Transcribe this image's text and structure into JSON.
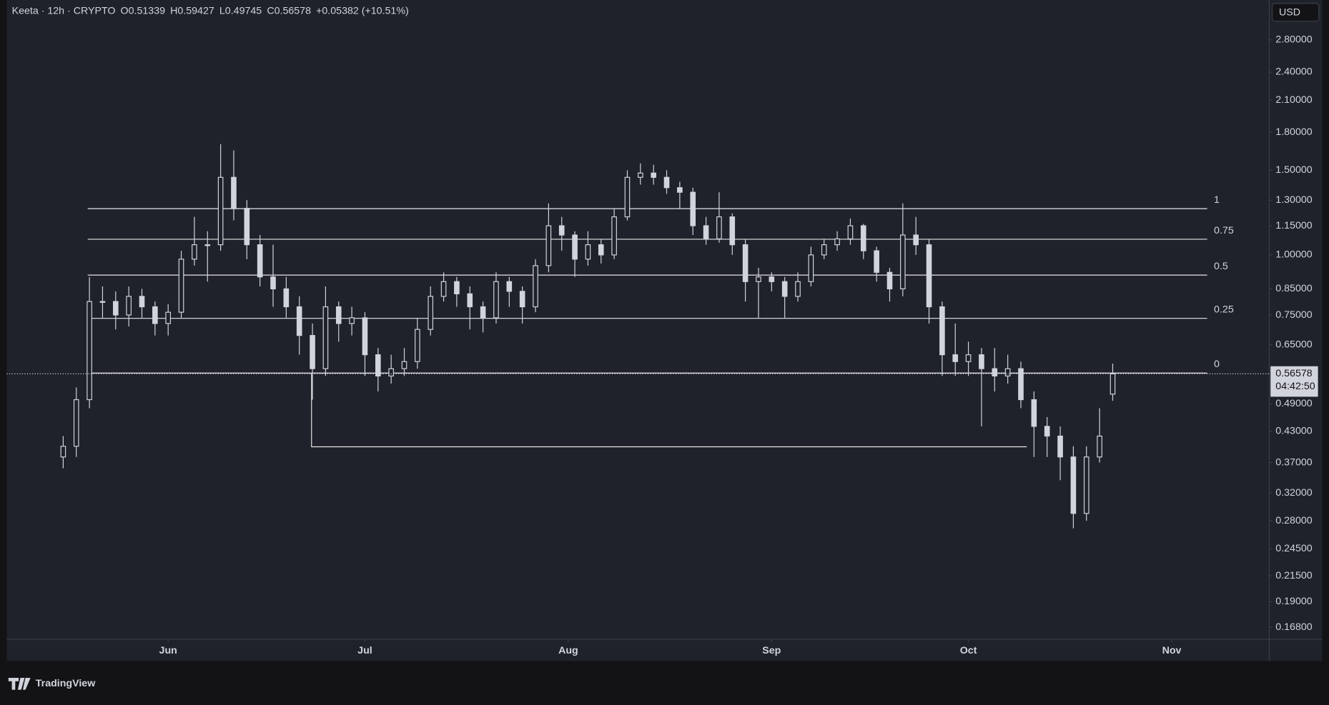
{
  "header": {
    "symbol": "Keeta · 12h · CRYPTO",
    "ohlc_labels": [
      "O",
      "H",
      "L",
      "C"
    ],
    "change": "+0.05382 (+10.51%)",
    "currency": "USD",
    "countdown": "04:42:50",
    "brand": "TradingView"
  },
  "chart_data": {
    "type": "candlestick",
    "log_scale": true,
    "color": "#d1d4dc",
    "xlim": [
      -4.3,
      91.9
    ],
    "ylim": [
      0.159,
      3.39
    ],
    "xticks": [
      {
        "value": 8,
        "label": "Jun"
      },
      {
        "value": 23,
        "label": "Jul"
      },
      {
        "value": 38.5,
        "label": "Aug"
      },
      {
        "value": 54,
        "label": "Sep"
      },
      {
        "value": 69,
        "label": "Oct"
      },
      {
        "value": 84.5,
        "label": "Nov"
      }
    ],
    "yticks": [
      {
        "value": 2.8,
        "label": "2.80000"
      },
      {
        "value": 2.4,
        "label": "2.40000"
      },
      {
        "value": 2.1,
        "label": "2.10000"
      },
      {
        "value": 1.8,
        "label": "1.80000"
      },
      {
        "value": 1.5,
        "label": "1.50000"
      },
      {
        "value": 1.3,
        "label": "1.30000"
      },
      {
        "value": 1.15,
        "label": "1.15000"
      },
      {
        "value": 1.0,
        "label": "1.00000"
      },
      {
        "value": 0.85,
        "label": "0.85000"
      },
      {
        "value": 0.75,
        "label": "0.75000"
      },
      {
        "value": 0.65,
        "label": "0.65000"
      },
      {
        "value": 0.49,
        "label": "0.49000"
      },
      {
        "value": 0.43,
        "label": "0.43000"
      },
      {
        "value": 0.37,
        "label": "0.37000"
      },
      {
        "value": 0.32,
        "label": "0.32000"
      },
      {
        "value": 0.28,
        "label": "0.28000"
      },
      {
        "value": 0.245,
        "label": "0.24500"
      },
      {
        "value": 0.215,
        "label": "0.21500"
      },
      {
        "value": 0.19,
        "label": "0.19000"
      },
      {
        "value": 0.168,
        "label": "0.16800"
      }
    ],
    "open": [
      0.38,
      0.4,
      0.5,
      0.8,
      0.8,
      0.75,
      0.82,
      0.78,
      0.72,
      0.76,
      0.98,
      1.05,
      1.05,
      1.45,
      1.25,
      1.05,
      0.9,
      0.85,
      0.78,
      0.68,
      0.58,
      0.78,
      0.72,
      0.74,
      0.62,
      0.56,
      0.58,
      0.6,
      0.7,
      0.82,
      0.88,
      0.83,
      0.78,
      0.74,
      0.88,
      0.84,
      0.78,
      0.95,
      1.15,
      1.1,
      0.98,
      1.05,
      1.0,
      1.2,
      1.45,
      1.48,
      1.45,
      1.38,
      1.35,
      1.15,
      1.08,
      1.2,
      1.05,
      0.88,
      0.9,
      0.88,
      0.82,
      0.88,
      1.0,
      1.05,
      1.08,
      1.15,
      1.02,
      0.92,
      0.85,
      1.1,
      1.05,
      0.78,
      0.62,
      0.6,
      0.62,
      0.58,
      0.56,
      0.58,
      0.5,
      0.44,
      0.42,
      0.38,
      0.29,
      0.38,
      0.51339
    ],
    "high": [
      0.42,
      0.53,
      0.9,
      0.86,
      0.84,
      0.86,
      0.85,
      0.8,
      0.79,
      1.02,
      1.2,
      1.12,
      1.7,
      1.65,
      1.3,
      1.1,
      1.05,
      0.9,
      0.82,
      0.72,
      0.86,
      0.8,
      0.78,
      0.76,
      0.64,
      0.62,
      0.64,
      0.74,
      0.86,
      0.92,
      0.9,
      0.86,
      0.8,
      0.92,
      0.9,
      0.86,
      0.98,
      1.28,
      1.2,
      1.12,
      1.12,
      1.08,
      1.25,
      1.5,
      1.55,
      1.54,
      1.5,
      1.42,
      1.38,
      1.2,
      1.35,
      1.22,
      1.08,
      0.94,
      0.92,
      0.9,
      0.92,
      1.04,
      1.08,
      1.12,
      1.19,
      1.16,
      1.04,
      0.94,
      1.28,
      1.2,
      1.08,
      0.8,
      0.72,
      0.66,
      0.64,
      0.64,
      0.62,
      0.6,
      0.52,
      0.46,
      0.44,
      0.4,
      0.4,
      0.48,
      0.59427
    ],
    "low": [
      0.36,
      0.38,
      0.48,
      0.74,
      0.7,
      0.71,
      0.74,
      0.68,
      0.68,
      0.74,
      0.95,
      0.88,
      1.02,
      1.18,
      0.98,
      0.86,
      0.78,
      0.74,
      0.62,
      0.5,
      0.56,
      0.66,
      0.68,
      0.56,
      0.52,
      0.54,
      0.56,
      0.58,
      0.68,
      0.8,
      0.78,
      0.7,
      0.69,
      0.72,
      0.78,
      0.72,
      0.76,
      0.92,
      1.02,
      0.9,
      0.95,
      0.96,
      0.98,
      1.18,
      1.4,
      1.4,
      1.34,
      1.25,
      1.1,
      1.05,
      1.06,
      1.0,
      0.8,
      0.74,
      0.84,
      0.74,
      0.8,
      0.86,
      0.98,
      1.02,
      1.05,
      0.98,
      0.88,
      0.8,
      0.82,
      1.0,
      0.72,
      0.56,
      0.56,
      0.56,
      0.44,
      0.52,
      0.54,
      0.48,
      0.38,
      0.38,
      0.34,
      0.27,
      0.28,
      0.37,
      0.49745
    ],
    "close": [
      0.4,
      0.5,
      0.8,
      0.8,
      0.75,
      0.82,
      0.78,
      0.72,
      0.76,
      0.98,
      1.05,
      1.05,
      1.45,
      1.25,
      1.05,
      0.9,
      0.85,
      0.78,
      0.68,
      0.58,
      0.78,
      0.72,
      0.74,
      0.62,
      0.56,
      0.58,
      0.6,
      0.7,
      0.82,
      0.88,
      0.83,
      0.78,
      0.74,
      0.88,
      0.84,
      0.78,
      0.95,
      1.15,
      1.1,
      0.98,
      1.05,
      1.0,
      1.2,
      1.45,
      1.48,
      1.45,
      1.38,
      1.35,
      1.15,
      1.08,
      1.2,
      1.05,
      0.88,
      0.9,
      0.88,
      0.82,
      0.88,
      1.0,
      1.05,
      1.08,
      1.15,
      1.02,
      0.92,
      0.85,
      1.1,
      1.05,
      0.78,
      0.62,
      0.6,
      0.62,
      0.58,
      0.56,
      0.58,
      0.5,
      0.44,
      0.42,
      0.38,
      0.29,
      0.38,
      0.42,
      0.56578
    ],
    "fib": {
      "levels": [
        1,
        0.75,
        0.5,
        0.25,
        0
      ],
      "low": 0.568,
      "high": 1.248,
      "x": [
        1.87,
        87.2
      ]
    },
    "support_line": {
      "price": 0.399,
      "x": [
        18.93,
        73.45
      ]
    }
  }
}
